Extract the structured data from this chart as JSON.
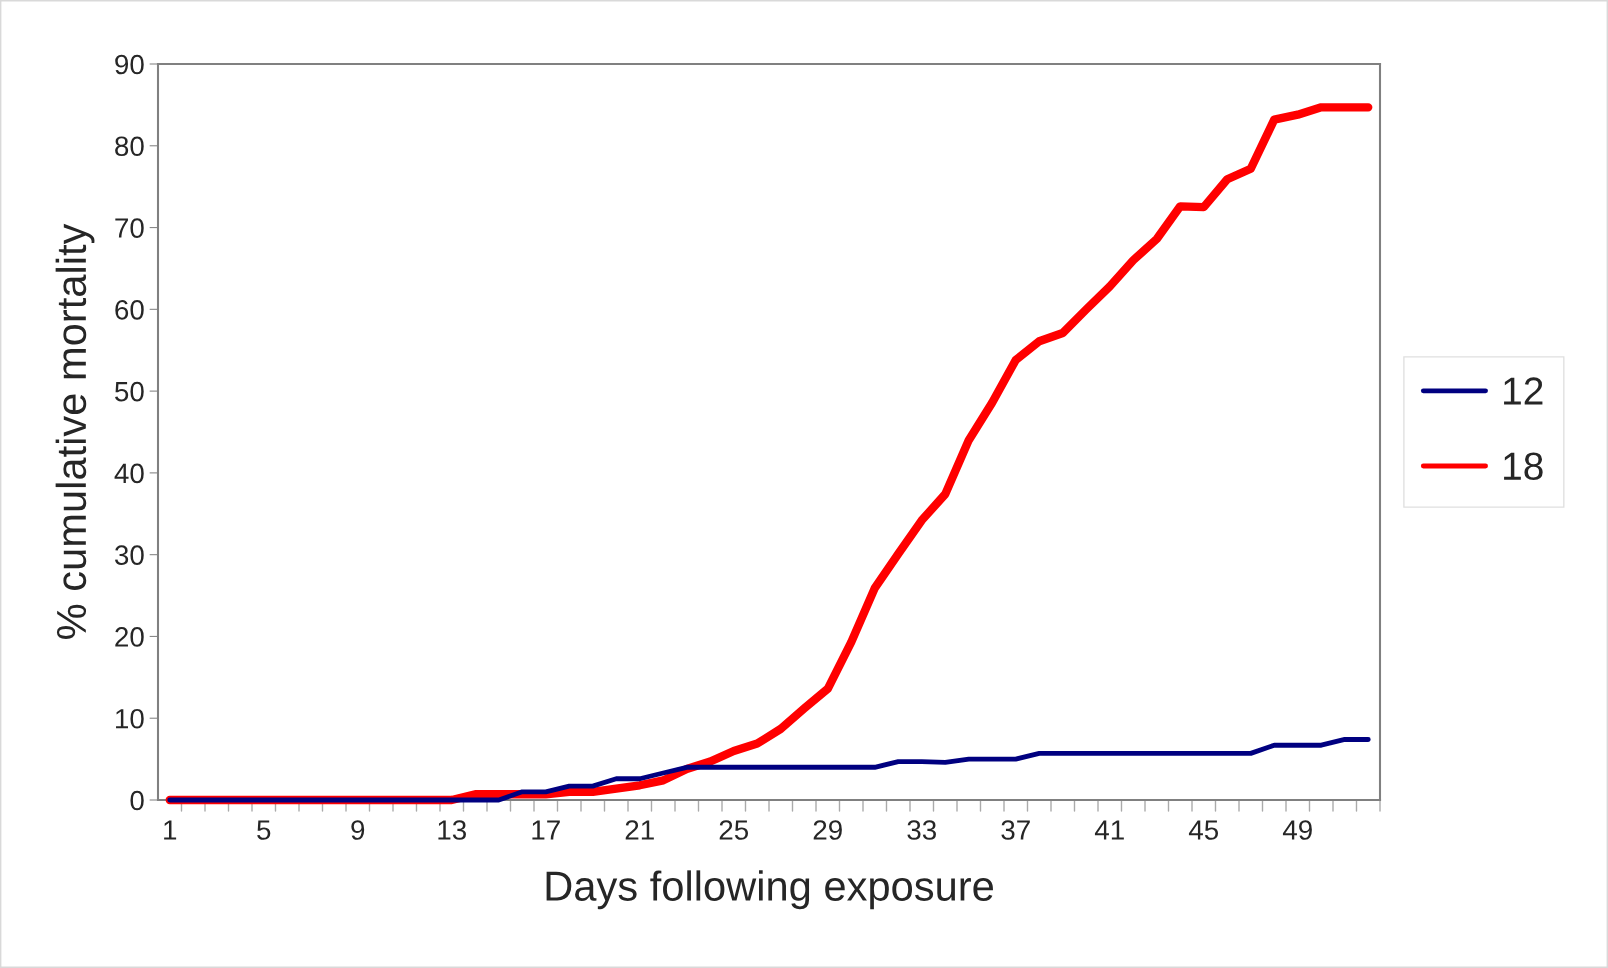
{
  "chart_data": {
    "type": "line",
    "xlabel": "Days following exposure",
    "ylabel": "% cumulative mortality",
    "categories": [
      "1",
      null,
      null,
      null,
      "5",
      null,
      null,
      null,
      "9",
      null,
      null,
      null,
      "13",
      null,
      null,
      null,
      "17",
      null,
      null,
      null,
      "21",
      null,
      null,
      null,
      "25",
      null,
      null,
      null,
      "29",
      null,
      null,
      null,
      "33",
      null,
      null,
      null,
      "37",
      null,
      null,
      null,
      "41",
      null,
      null,
      null,
      "45",
      null,
      null,
      null,
      "49",
      null,
      null,
      null
    ],
    "series": [
      {
        "name": "12",
        "color": "#000080",
        "values": [
          0,
          0,
          0,
          0,
          0,
          0,
          0,
          0,
          0,
          0,
          0,
          0,
          0,
          0,
          0,
          1.0,
          1.0,
          1.7,
          1.7,
          2.6,
          2.6,
          3.3,
          4.0,
          4.0,
          4.0,
          4.0,
          4.0,
          4.0,
          4.0,
          4.0,
          4.0,
          4.7,
          4.7,
          4.6,
          5.0,
          5.0,
          5.0,
          5.7,
          5.7,
          5.7,
          5.7,
          5.7,
          5.7,
          5.7,
          5.7,
          5.7,
          5.7,
          6.7,
          6.7,
          6.7,
          7.4,
          7.4
        ]
      },
      {
        "name": "18",
        "color": "#ff0000",
        "values": [
          0,
          0,
          0,
          0,
          0,
          0,
          0,
          0,
          0,
          0,
          0,
          0,
          0,
          0.7,
          0.7,
          0.7,
          0.7,
          1.0,
          1.0,
          1.4,
          1.8,
          2.4,
          3.8,
          4.7,
          6.0,
          6.9,
          8.7,
          11.2,
          13.6,
          19.3,
          25.9,
          30.1,
          34.2,
          37.4,
          44.0,
          48.6,
          53.8,
          56.1,
          57.1,
          60.0,
          62.8,
          66.0,
          68.6,
          72.6,
          72.5,
          75.9,
          77.2,
          83.2,
          83.8,
          84.7,
          84.7,
          84.7
        ]
      }
    ],
    "ylim": [
      0,
      90
    ],
    "yticks": [
      0,
      10,
      20,
      30,
      40,
      50,
      60,
      70,
      80,
      90
    ],
    "grid": false,
    "legend": "right"
  }
}
